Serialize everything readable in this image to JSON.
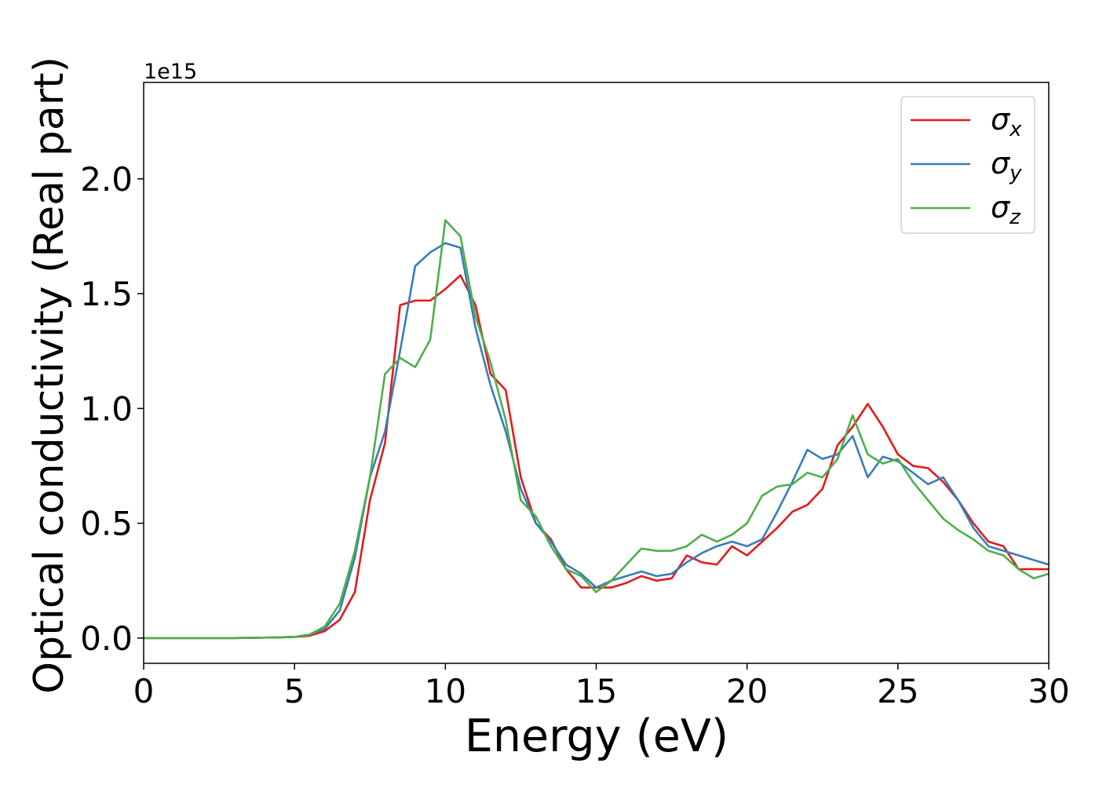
{
  "chart_data": {
    "type": "line",
    "xlabel": "Energy (eV)",
    "ylabel": "Optical conductivity (Real part)",
    "y_offset": "1e15",
    "x": [
      0,
      0.5,
      1,
      1.5,
      2,
      2.5,
      3,
      3.5,
      4,
      4.5,
      5,
      5.5,
      6,
      6.5,
      7,
      7.5,
      8,
      8.5,
      9,
      9.5,
      10,
      10.5,
      11,
      11.5,
      12,
      12.5,
      13,
      13.5,
      14,
      14.5,
      15,
      15.5,
      16,
      16.5,
      17,
      17.5,
      18,
      18.5,
      19,
      19.5,
      20,
      20.5,
      21,
      21.5,
      22,
      22.5,
      23,
      23.5,
      24,
      24.5,
      25,
      25.5,
      26,
      26.5,
      27,
      27.5,
      28,
      28.5,
      29,
      29.5,
      30
    ],
    "series": [
      {
        "name": "σx",
        "color": "#e41a1c",
        "values": [
          0,
          0,
          0,
          0,
          0,
          0,
          0,
          0.001,
          0.002,
          0.003,
          0.005,
          0.01,
          0.03,
          0.08,
          0.2,
          0.6,
          0.85,
          1.45,
          1.47,
          1.47,
          1.52,
          1.58,
          1.45,
          1.15,
          1.08,
          0.7,
          0.5,
          0.43,
          0.3,
          0.22,
          0.22,
          0.22,
          0.24,
          0.27,
          0.25,
          0.26,
          0.36,
          0.33,
          0.32,
          0.4,
          0.36,
          0.42,
          0.48,
          0.55,
          0.58,
          0.65,
          0.84,
          0.92,
          1.02,
          0.92,
          0.8,
          0.75,
          0.74,
          0.68,
          0.6,
          0.5,
          0.42,
          0.4,
          0.3,
          0.3,
          0.3
        ]
      },
      {
        "name": "σy",
        "color": "#377eb8",
        "values": [
          0,
          0,
          0,
          0,
          0,
          0,
          0,
          0.001,
          0.002,
          0.003,
          0.005,
          0.015,
          0.04,
          0.12,
          0.35,
          0.7,
          0.9,
          1.25,
          1.62,
          1.68,
          1.72,
          1.7,
          1.35,
          1.1,
          0.9,
          0.65,
          0.5,
          0.42,
          0.32,
          0.28,
          0.22,
          0.25,
          0.27,
          0.29,
          0.27,
          0.28,
          0.33,
          0.37,
          0.4,
          0.42,
          0.4,
          0.43,
          0.55,
          0.68,
          0.82,
          0.78,
          0.8,
          0.88,
          0.7,
          0.79,
          0.77,
          0.72,
          0.67,
          0.7,
          0.6,
          0.48,
          0.4,
          0.38,
          0.36,
          0.34,
          0.32
        ]
      },
      {
        "name": "σz",
        "color": "#4daf4a",
        "values": [
          0,
          0,
          0,
          0,
          0,
          0,
          0,
          0.001,
          0.002,
          0.003,
          0.005,
          0.015,
          0.05,
          0.15,
          0.38,
          0.7,
          1.15,
          1.22,
          1.18,
          1.3,
          1.82,
          1.75,
          1.4,
          1.2,
          0.95,
          0.6,
          0.53,
          0.4,
          0.3,
          0.27,
          0.2,
          0.25,
          0.32,
          0.39,
          0.38,
          0.38,
          0.4,
          0.45,
          0.42,
          0.45,
          0.5,
          0.62,
          0.66,
          0.67,
          0.72,
          0.7,
          0.78,
          0.97,
          0.8,
          0.76,
          0.78,
          0.68,
          0.6,
          0.52,
          0.47,
          0.43,
          0.38,
          0.36,
          0.3,
          0.26,
          0.28
        ]
      }
    ],
    "xlim": [
      0,
      30
    ],
    "xticks": [
      0,
      5,
      10,
      15,
      20,
      25,
      30
    ],
    "ylim": [
      -0.11,
      2.42
    ],
    "yticks": [
      {
        "value": 0,
        "label": "0.0"
      },
      0.5,
      {
        "value": 1,
        "label": "1.0"
      },
      1.5,
      {
        "value": 2,
        "label": "2.0"
      }
    ],
    "legend": "upper right"
  }
}
